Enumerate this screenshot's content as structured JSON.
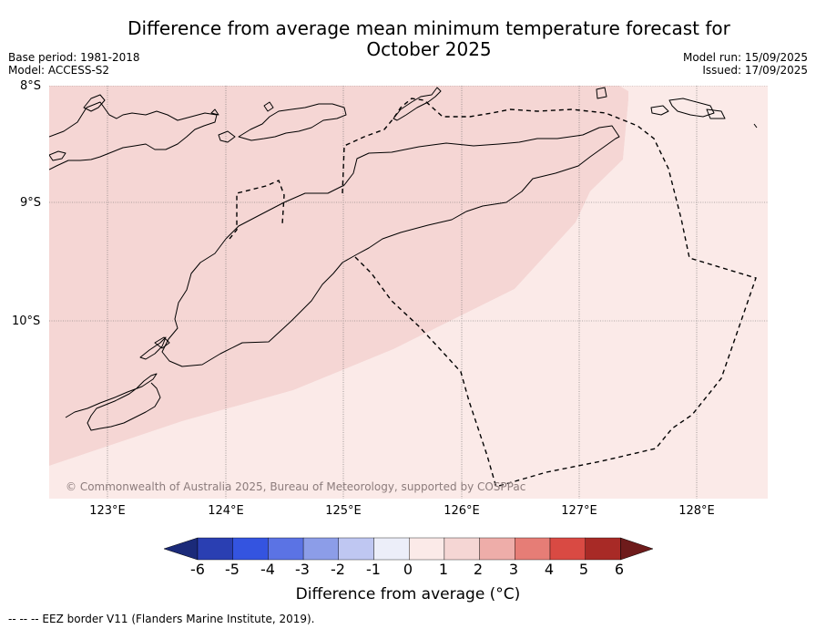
{
  "header": {
    "title_line1": "Difference from average mean minimum temperature forecast for",
    "title_line2": "October 2025",
    "base_period": "Base period: 1981-2018",
    "model": "Model: ACCESS-S2",
    "model_run": "Model run: 15/09/2025",
    "issued": "Issued: 17/09/2025"
  },
  "map": {
    "lat_labels": [
      "8°S",
      "9°S",
      "10°S"
    ],
    "lon_labels": [
      "123°E",
      "124°E",
      "125°E",
      "126°E",
      "127°E",
      "128°E"
    ],
    "copyright": "© Commonwealth of Australia 2025, Bureau of Meteorology, supported by COSPPac",
    "fill_colors": {
      "category_1_to_2": "#f5d6d4",
      "category_0_to_1": "#fbeae8"
    }
  },
  "colorbar": {
    "title": "Difference from average (°C)",
    "ticks": [
      "-6",
      "-5",
      "-4",
      "-3",
      "-2",
      "-1",
      "0",
      "1",
      "2",
      "3",
      "4",
      "5",
      "6"
    ],
    "colors": [
      "#1b2a79",
      "#2a3fb2",
      "#3454e0",
      "#5b73e4",
      "#8c9de8",
      "#bfc7f2",
      "#eceef9",
      "#fbeae8",
      "#f5d6d4",
      "#eeada9",
      "#e67d76",
      "#d94a43",
      "#a82a26",
      "#6e1b1b"
    ]
  },
  "footer": {
    "legend_note": "--  --  -- EEZ border V11 (Flanders Marine Institute, 2019)."
  }
}
